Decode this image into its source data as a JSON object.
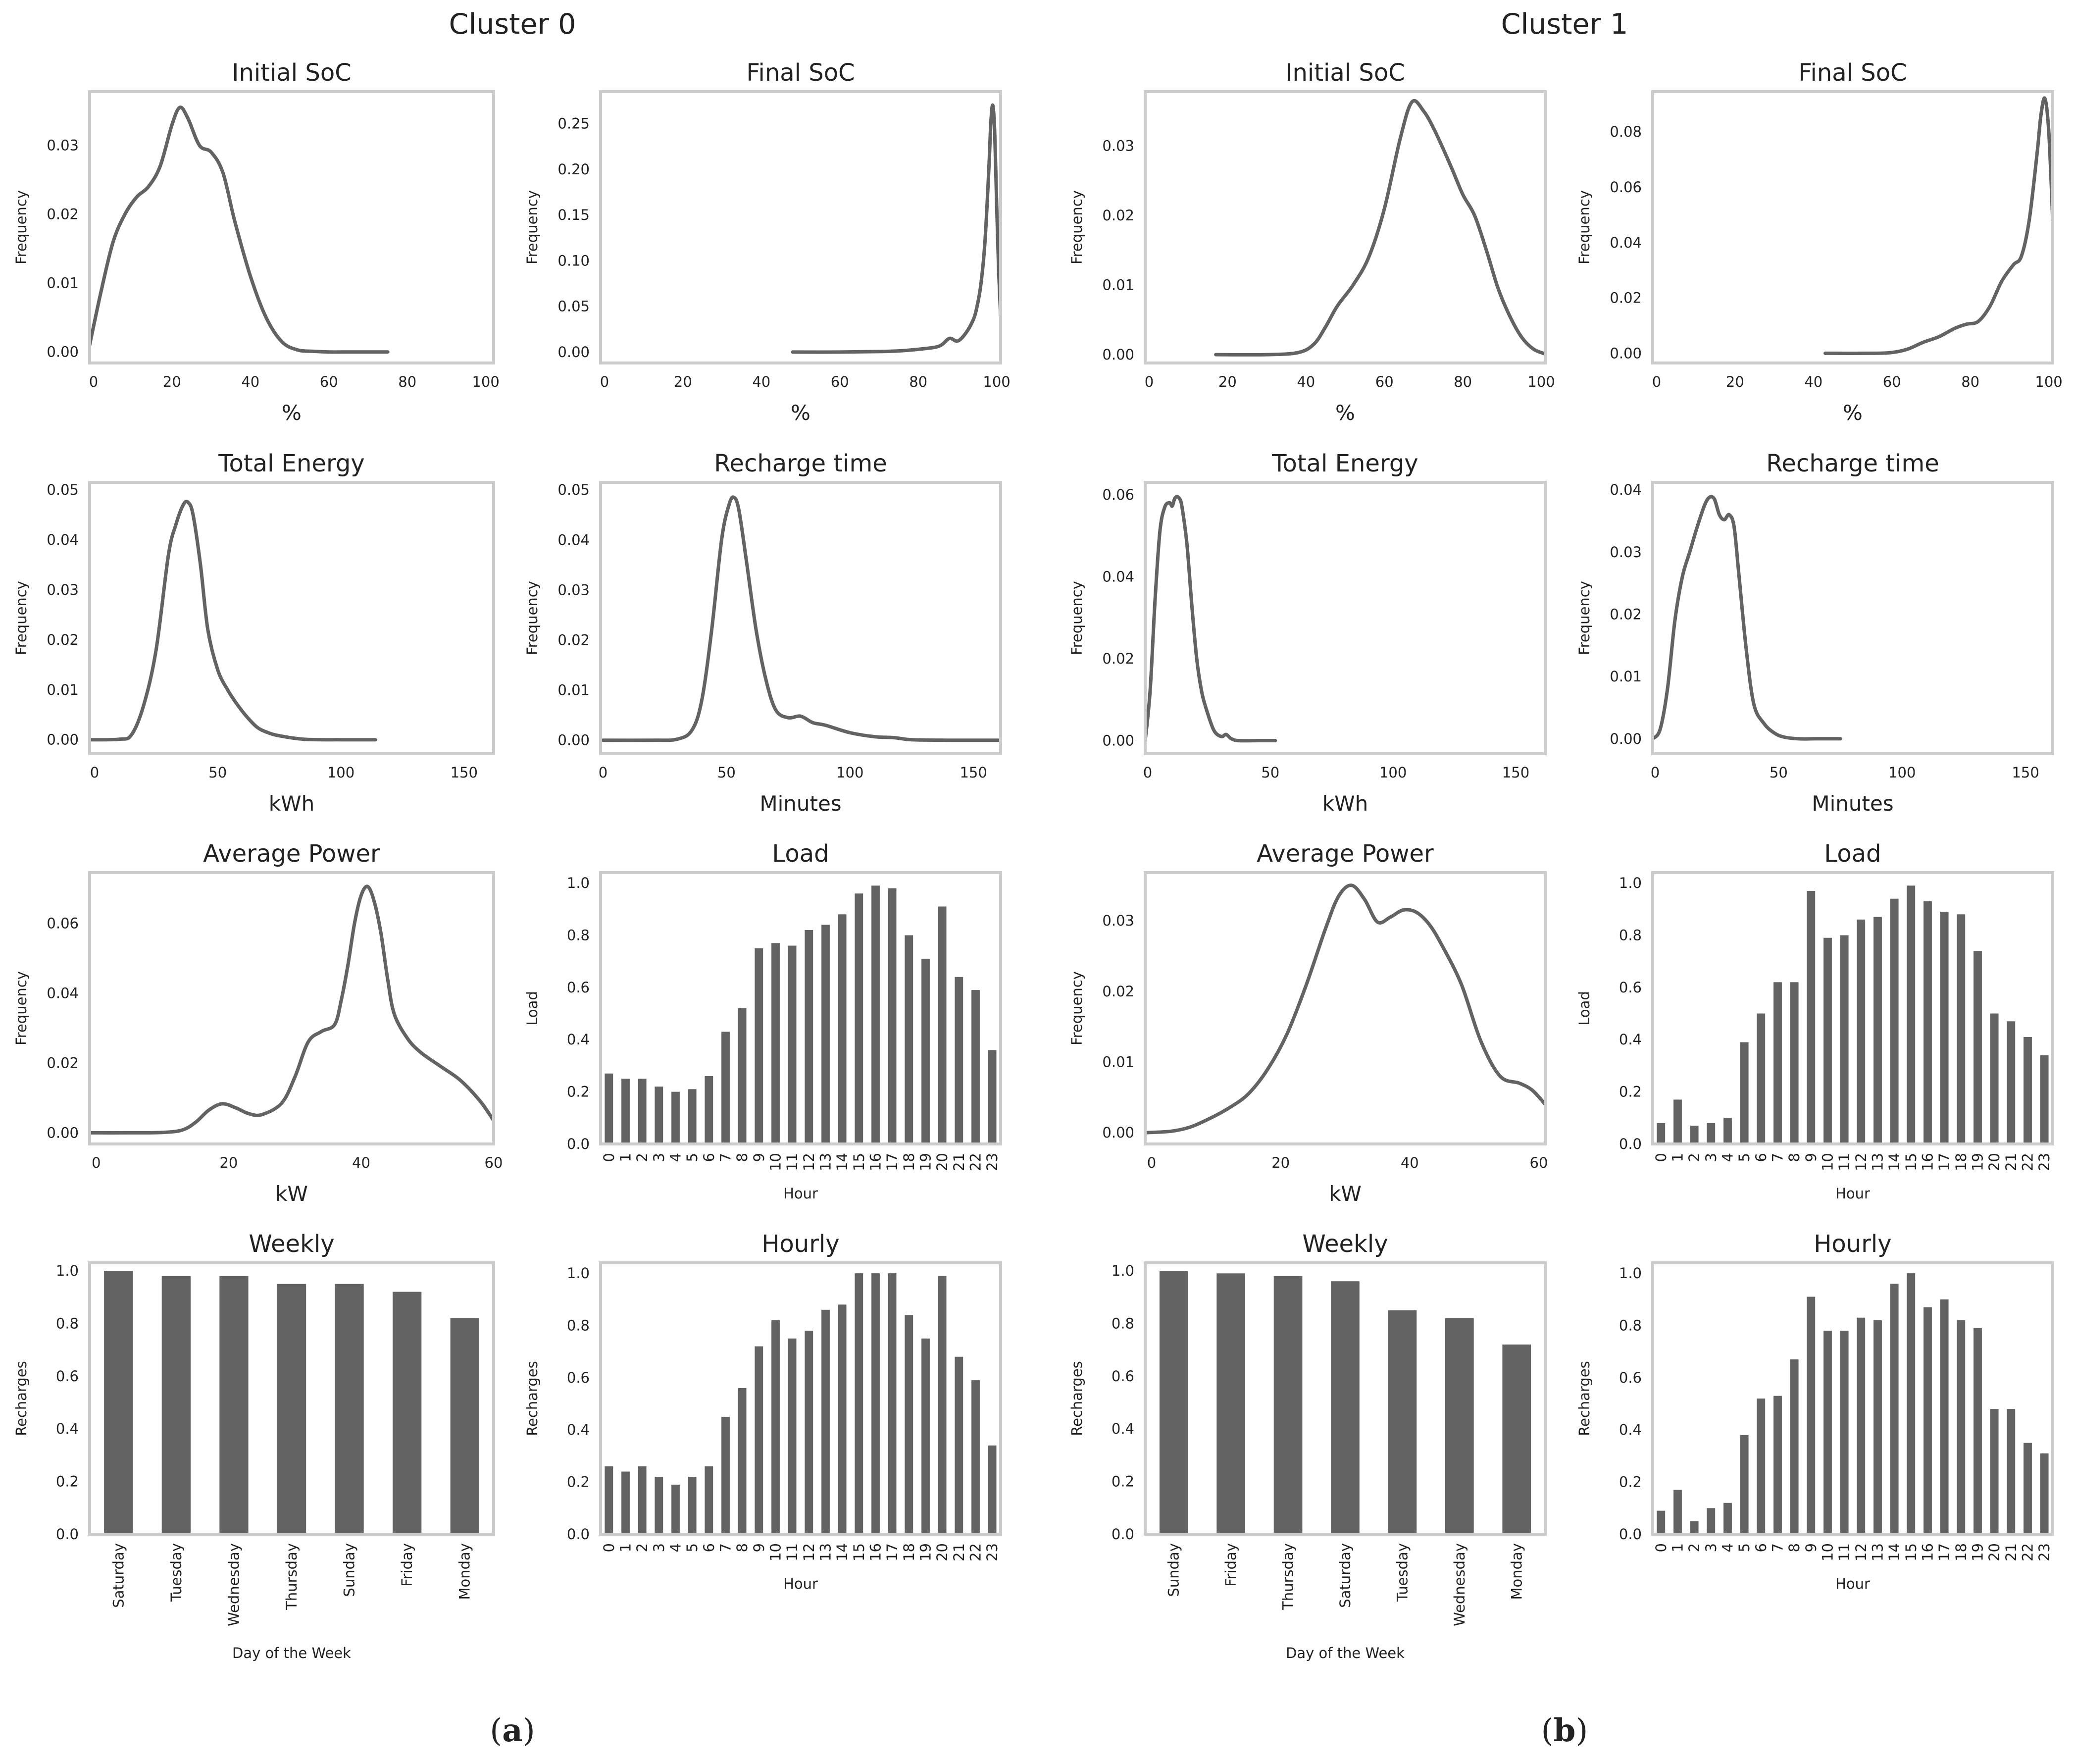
{
  "figure": {
    "cluster_titles": [
      "Cluster 0",
      "Cluster 1"
    ],
    "captions": [
      {
        "open": "(",
        "letter": "a",
        "close": ")"
      },
      {
        "open": "(",
        "letter": "b",
        "close": ")"
      }
    ],
    "colors": {
      "line": "#636363",
      "bar": "#636363",
      "frame": "#cccccc",
      "text": "#222222"
    }
  },
  "chart_data": [
    {
      "id": "c0-initial-soc",
      "cluster": "Cluster 0",
      "type": "line",
      "title": "Initial SoC",
      "xlabel": "%",
      "ylabel": "Frequency",
      "xlim": [
        -1,
        102
      ],
      "ylim": [
        -0.0016,
        0.0378
      ],
      "xticks": [
        0,
        20,
        40,
        60,
        80,
        100
      ],
      "yticks": [
        0.0,
        0.01,
        0.02,
        0.03
      ],
      "xtick_labels": [
        "0",
        "20",
        "40",
        "60",
        "80",
        "100"
      ],
      "ytick_labels": [
        "0.00",
        "0.01",
        "0.02",
        "0.03"
      ],
      "x": [
        -1,
        2,
        5,
        8,
        11,
        14,
        17,
        20,
        22,
        24,
        27,
        30,
        33,
        36,
        40,
        44,
        48,
        52,
        56,
        60,
        66,
        75
      ],
      "y": [
        0.001,
        0.009,
        0.016,
        0.02,
        0.0225,
        0.024,
        0.027,
        0.033,
        0.0355,
        0.034,
        0.03,
        0.029,
        0.026,
        0.019,
        0.011,
        0.005,
        0.0015,
        0.0003,
        0.0001,
        0.0,
        0.0,
        0.0
      ]
    },
    {
      "id": "c0-final-soc",
      "cluster": "Cluster 0",
      "type": "line",
      "title": "Final SoC",
      "xlabel": "%",
      "ylabel": "Frequency",
      "xlim": [
        -1,
        101
      ],
      "ylim": [
        -0.012,
        0.285
      ],
      "xticks": [
        0,
        20,
        40,
        60,
        80,
        100
      ],
      "yticks": [
        0.0,
        0.05,
        0.1,
        0.15,
        0.2,
        0.25
      ],
      "xtick_labels": [
        "0",
        "20",
        "40",
        "60",
        "80",
        "100"
      ],
      "ytick_labels": [
        "0.00",
        "0.05",
        "0.10",
        "0.15",
        "0.20",
        "0.25"
      ],
      "x": [
        48,
        60,
        70,
        76,
        80,
        84,
        86,
        88,
        90,
        92,
        94,
        95,
        96,
        97,
        98,
        98.5,
        99,
        99.5,
        100,
        100.5,
        101
      ],
      "y": [
        0.0,
        0.0,
        0.0005,
        0.0015,
        0.003,
        0.005,
        0.008,
        0.015,
        0.012,
        0.02,
        0.035,
        0.05,
        0.075,
        0.12,
        0.2,
        0.25,
        0.27,
        0.24,
        0.16,
        0.09,
        0.04
      ]
    },
    {
      "id": "c1-initial-soc",
      "cluster": "Cluster 1",
      "type": "line",
      "title": "Initial SoC",
      "xlabel": "%",
      "ylabel": "Frequency",
      "xlim": [
        -1,
        101
      ],
      "ylim": [
        -0.0012,
        0.0378
      ],
      "xticks": [
        0,
        20,
        40,
        60,
        80,
        100
      ],
      "yticks": [
        0.0,
        0.01,
        0.02,
        0.03
      ],
      "xtick_labels": [
        "0",
        "20",
        "40",
        "60",
        "80",
        "100"
      ],
      "ytick_labels": [
        "0.00",
        "0.01",
        "0.02",
        "0.03"
      ],
      "x": [
        17,
        30,
        38,
        42,
        45,
        48,
        52,
        56,
        60,
        64,
        67,
        70,
        73,
        77,
        80,
        83,
        86,
        89,
        92,
        95,
        98,
        101
      ],
      "y": [
        0.0,
        0.0,
        0.0003,
        0.0015,
        0.004,
        0.007,
        0.01,
        0.014,
        0.021,
        0.031,
        0.0363,
        0.035,
        0.032,
        0.027,
        0.023,
        0.02,
        0.015,
        0.0095,
        0.0055,
        0.0025,
        0.0008,
        0.0001
      ]
    },
    {
      "id": "c1-final-soc",
      "cluster": "Cluster 1",
      "type": "line",
      "title": "Final SoC",
      "xlabel": "%",
      "ylabel": "Frequency",
      "xlim": [
        -1,
        101
      ],
      "ylim": [
        -0.0035,
        0.0945
      ],
      "xticks": [
        0,
        20,
        40,
        60,
        80,
        100
      ],
      "yticks": [
        0.0,
        0.02,
        0.04,
        0.06,
        0.08
      ],
      "xtick_labels": [
        "0",
        "20",
        "40",
        "60",
        "80",
        "100"
      ],
      "ytick_labels": [
        "0.00",
        "0.02",
        "0.04",
        "0.06",
        "0.08"
      ],
      "x": [
        43,
        55,
        60,
        64,
        68,
        72,
        76,
        79,
        82,
        85,
        88,
        91,
        93,
        95,
        97,
        98,
        99,
        100,
        101
      ],
      "y": [
        0.0,
        0.0,
        0.0003,
        0.0015,
        0.004,
        0.006,
        0.009,
        0.0105,
        0.0115,
        0.017,
        0.026,
        0.032,
        0.035,
        0.048,
        0.072,
        0.086,
        0.092,
        0.08,
        0.048
      ]
    },
    {
      "id": "c0-total-energy",
      "cluster": "Cluster 0",
      "type": "line",
      "title": "Total Energy",
      "xlabel": "kWh",
      "ylabel": "Frequency",
      "xlim": [
        -2,
        162
      ],
      "ylim": [
        -0.0028,
        0.0515
      ],
      "xticks": [
        0,
        50,
        100,
        150
      ],
      "yticks": [
        0.0,
        0.01,
        0.02,
        0.03,
        0.04,
        0.05
      ],
      "xtick_labels": [
        "0",
        "50",
        "100",
        "150"
      ],
      "ytick_labels": [
        "0.00",
        "0.01",
        "0.02",
        "0.03",
        "0.04",
        "0.05"
      ],
      "x": [
        -2,
        10,
        15,
        20,
        25,
        30,
        33,
        36,
        38,
        40,
        43,
        46,
        50,
        54,
        58,
        62,
        66,
        70,
        75,
        85,
        100,
        114
      ],
      "y": [
        0.0,
        0.0001,
        0.001,
        0.007,
        0.018,
        0.037,
        0.043,
        0.047,
        0.0475,
        0.045,
        0.035,
        0.022,
        0.014,
        0.01,
        0.007,
        0.0045,
        0.0025,
        0.0015,
        0.0008,
        0.0001,
        0.0,
        0.0
      ]
    },
    {
      "id": "c0-recharge-time",
      "cluster": "Cluster 0",
      "type": "line",
      "title": "Recharge time",
      "xlabel": "Minutes",
      "ylabel": "Frequency",
      "xlim": [
        -1,
        161
      ],
      "ylim": [
        -0.0027,
        0.0515
      ],
      "xticks": [
        0,
        50,
        100,
        150
      ],
      "yticks": [
        0.0,
        0.01,
        0.02,
        0.03,
        0.04,
        0.05
      ],
      "xtick_labels": [
        "0",
        "50",
        "100",
        "150"
      ],
      "ytick_labels": [
        "0.00",
        "0.01",
        "0.02",
        "0.03",
        "0.04",
        "0.05"
      ],
      "x": [
        0,
        20,
        30,
        36,
        40,
        44,
        48,
        51,
        53,
        55,
        58,
        62,
        66,
        70,
        75,
        80,
        85,
        90,
        100,
        110,
        118,
        125,
        140,
        161
      ],
      "y": [
        0.0,
        0.0,
        0.0002,
        0.002,
        0.008,
        0.022,
        0.04,
        0.047,
        0.0485,
        0.046,
        0.036,
        0.022,
        0.012,
        0.006,
        0.0045,
        0.0048,
        0.0035,
        0.003,
        0.0015,
        0.0007,
        0.0005,
        0.0001,
        0.0,
        0.0
      ]
    },
    {
      "id": "c1-total-energy",
      "cluster": "Cluster 1",
      "type": "line",
      "title": "Total Energy",
      "xlabel": "kWh",
      "ylabel": "Frequency",
      "xlim": [
        -1,
        162
      ],
      "ylim": [
        -0.0032,
        0.063
      ],
      "xticks": [
        0,
        50,
        100,
        150
      ],
      "yticks": [
        0.0,
        0.02,
        0.04,
        0.06
      ],
      "xtick_labels": [
        "0",
        "50",
        "100",
        "150"
      ],
      "ytick_labels": [
        "0.00",
        "0.02",
        "0.04",
        "0.06"
      ],
      "x": [
        -1,
        1,
        3,
        5,
        7,
        9,
        10,
        11,
        12,
        13,
        14,
        16,
        18,
        20,
        22,
        24,
        27,
        30,
        32,
        34,
        37,
        45,
        52
      ],
      "y": [
        0.0,
        0.012,
        0.034,
        0.051,
        0.057,
        0.058,
        0.0572,
        0.059,
        0.0595,
        0.059,
        0.057,
        0.048,
        0.033,
        0.02,
        0.012,
        0.0075,
        0.0025,
        0.001,
        0.0015,
        0.0005,
        0.0,
        0.0,
        0.0
      ]
    },
    {
      "id": "c1-recharge-time",
      "cluster": "Cluster 1",
      "type": "line",
      "title": "Recharge time",
      "xlabel": "Minutes",
      "ylabel": "Frequency",
      "xlim": [
        -1,
        161
      ],
      "ylim": [
        -0.0024,
        0.0412
      ],
      "xticks": [
        0,
        50,
        100,
        150
      ],
      "yticks": [
        0.0,
        0.01,
        0.02,
        0.03,
        0.04
      ],
      "xtick_labels": [
        "0",
        "50",
        "100",
        "150"
      ],
      "ytick_labels": [
        "0.00",
        "0.01",
        "0.02",
        "0.03",
        "0.04"
      ],
      "x": [
        -1,
        2,
        5,
        8,
        11,
        14,
        17,
        20,
        22,
        24,
        26,
        28,
        30,
        32,
        34,
        37,
        40,
        44,
        48,
        52,
        58,
        65,
        75
      ],
      "y": [
        0.0,
        0.0015,
        0.008,
        0.019,
        0.026,
        0.03,
        0.034,
        0.0375,
        0.0388,
        0.0385,
        0.036,
        0.0352,
        0.036,
        0.034,
        0.026,
        0.014,
        0.0055,
        0.0025,
        0.001,
        0.0003,
        0.0,
        0.0,
        0.0
      ]
    },
    {
      "id": "c0-average-power",
      "cluster": "Cluster 0",
      "type": "line",
      "title": "Average Power",
      "xlabel": "kW",
      "ylabel": "Frequency",
      "xlim": [
        -1,
        60
      ],
      "ylim": [
        -0.0032,
        0.0745
      ],
      "xticks": [
        0,
        20,
        40,
        60
      ],
      "yticks": [
        0.0,
        0.02,
        0.04,
        0.06
      ],
      "xtick_labels": [
        "0",
        "20",
        "40",
        "60"
      ],
      "ytick_labels": [
        "0.00",
        "0.02",
        "0.04",
        "0.06"
      ],
      "x": [
        -1,
        5,
        10,
        13,
        15,
        17,
        19,
        21,
        23,
        25,
        28,
        30,
        32,
        34,
        36,
        37,
        38,
        39,
        40,
        41,
        42,
        43,
        44,
        45,
        47,
        49,
        52,
        55,
        58,
        60
      ],
      "y": [
        0.0,
        0.0,
        0.0001,
        0.0008,
        0.003,
        0.0065,
        0.0083,
        0.0072,
        0.0055,
        0.0052,
        0.0085,
        0.016,
        0.026,
        0.029,
        0.031,
        0.038,
        0.048,
        0.06,
        0.068,
        0.0705,
        0.066,
        0.057,
        0.044,
        0.034,
        0.027,
        0.023,
        0.019,
        0.015,
        0.009,
        0.0035
      ]
    },
    {
      "id": "c0-load",
      "cluster": "Cluster 0",
      "type": "bar",
      "title": "Load",
      "xlabel": "Hour",
      "ylabel": "Load",
      "ylim": [
        0,
        1.04
      ],
      "yticks": [
        0.0,
        0.2,
        0.4,
        0.6,
        0.8,
        1.0
      ],
      "ytick_labels": [
        "0.0",
        "0.2",
        "0.4",
        "0.6",
        "0.8",
        "1.0"
      ],
      "categories": [
        "0",
        "1",
        "2",
        "3",
        "4",
        "5",
        "6",
        "7",
        "8",
        "9",
        "10",
        "11",
        "12",
        "13",
        "14",
        "15",
        "16",
        "17",
        "18",
        "19",
        "20",
        "21",
        "22",
        "23"
      ],
      "values": [
        0.27,
        0.25,
        0.25,
        0.22,
        0.2,
        0.21,
        0.26,
        0.43,
        0.52,
        0.75,
        0.77,
        0.76,
        0.82,
        0.84,
        0.88,
        0.96,
        0.99,
        0.98,
        0.8,
        0.71,
        0.91,
        0.64,
        0.59,
        0.36
      ],
      "rotate_labels": true
    },
    {
      "id": "c1-average-power",
      "cluster": "Cluster 1",
      "type": "line",
      "title": "Average Power",
      "xlabel": "kW",
      "ylabel": "Frequency",
      "xlim": [
        -1,
        61
      ],
      "ylim": [
        -0.0016,
        0.0368
      ],
      "xticks": [
        0,
        20,
        40,
        60
      ],
      "yticks": [
        0.0,
        0.01,
        0.02,
        0.03
      ],
      "xtick_labels": [
        "0",
        "20",
        "40",
        "60"
      ],
      "ytick_labels": [
        "0.00",
        "0.01",
        "0.02",
        "0.03"
      ],
      "x": [
        -1,
        3,
        6,
        9,
        12,
        15,
        18,
        21,
        24,
        27,
        29,
        31,
        33,
        35,
        37,
        39,
        41,
        43,
        45,
        48,
        51,
        54,
        57,
        59,
        61
      ],
      "y": [
        0.0,
        0.0002,
        0.0008,
        0.002,
        0.0035,
        0.0055,
        0.009,
        0.014,
        0.021,
        0.029,
        0.0335,
        0.035,
        0.033,
        0.0298,
        0.0305,
        0.0315,
        0.0312,
        0.0295,
        0.0265,
        0.021,
        0.013,
        0.008,
        0.007,
        0.006,
        0.004
      ]
    },
    {
      "id": "c1-load",
      "cluster": "Cluster 1",
      "type": "bar",
      "title": "Load",
      "xlabel": "Hour",
      "ylabel": "Load",
      "ylim": [
        0,
        1.04
      ],
      "yticks": [
        0.0,
        0.2,
        0.4,
        0.6,
        0.8,
        1.0
      ],
      "ytick_labels": [
        "0.0",
        "0.2",
        "0.4",
        "0.6",
        "0.8",
        "1.0"
      ],
      "categories": [
        "0",
        "1",
        "2",
        "3",
        "4",
        "5",
        "6",
        "7",
        "8",
        "9",
        "10",
        "11",
        "12",
        "13",
        "14",
        "15",
        "16",
        "17",
        "18",
        "19",
        "20",
        "21",
        "22",
        "23"
      ],
      "values": [
        0.08,
        0.17,
        0.07,
        0.08,
        0.1,
        0.39,
        0.5,
        0.62,
        0.62,
        0.97,
        0.79,
        0.8,
        0.86,
        0.87,
        0.94,
        0.99,
        0.93,
        0.89,
        0.88,
        0.74,
        0.5,
        0.47,
        0.41,
        0.34
      ],
      "rotate_labels": true
    },
    {
      "id": "c0-weekly",
      "cluster": "Cluster 0",
      "type": "bar",
      "title": "Weekly",
      "xlabel": "Day of the Week",
      "ylabel": "Recharges",
      "ylim": [
        0,
        1.03
      ],
      "yticks": [
        0.0,
        0.2,
        0.4,
        0.6,
        0.8,
        1.0
      ],
      "ytick_labels": [
        "0.0",
        "0.2",
        "0.4",
        "0.6",
        "0.8",
        "1.0"
      ],
      "categories": [
        "Saturday",
        "Tuesday",
        "Wednesday",
        "Thursday",
        "Sunday",
        "Friday",
        "Monday"
      ],
      "values": [
        1.0,
        0.98,
        0.98,
        0.95,
        0.95,
        0.92,
        0.82
      ],
      "rotate_labels": true
    },
    {
      "id": "c0-hourly",
      "cluster": "Cluster 0",
      "type": "bar",
      "title": "Hourly",
      "xlabel": "Hour",
      "ylabel": "Recharges",
      "ylim": [
        0,
        1.04
      ],
      "yticks": [
        0.0,
        0.2,
        0.4,
        0.6,
        0.8,
        1.0
      ],
      "ytick_labels": [
        "0.0",
        "0.2",
        "0.4",
        "0.6",
        "0.8",
        "1.0"
      ],
      "categories": [
        "0",
        "1",
        "2",
        "3",
        "4",
        "5",
        "6",
        "7",
        "8",
        "9",
        "10",
        "11",
        "12",
        "13",
        "14",
        "15",
        "16",
        "17",
        "18",
        "19",
        "20",
        "21",
        "22",
        "23"
      ],
      "values": [
        0.26,
        0.24,
        0.26,
        0.22,
        0.19,
        0.22,
        0.26,
        0.45,
        0.56,
        0.72,
        0.82,
        0.75,
        0.78,
        0.86,
        0.88,
        1.0,
        1.0,
        1.0,
        0.84,
        0.75,
        0.99,
        0.68,
        0.59,
        0.34
      ],
      "rotate_labels": true
    },
    {
      "id": "c1-weekly",
      "cluster": "Cluster 1",
      "type": "bar",
      "title": "Weekly",
      "xlabel": "Day of the Week",
      "ylabel": "Recharges",
      "ylim": [
        0,
        1.03
      ],
      "yticks": [
        0.0,
        0.2,
        0.4,
        0.6,
        0.8,
        1.0
      ],
      "ytick_labels": [
        "0.0",
        "0.2",
        "0.4",
        "0.6",
        "0.8",
        "1.0"
      ],
      "categories": [
        "Sunday",
        "Friday",
        "Thursday",
        "Saturday",
        "Tuesday",
        "Wednesday",
        "Monday"
      ],
      "values": [
        1.0,
        0.99,
        0.98,
        0.96,
        0.85,
        0.82,
        0.72
      ],
      "rotate_labels": true
    },
    {
      "id": "c1-hourly",
      "cluster": "Cluster 1",
      "type": "bar",
      "title": "Hourly",
      "xlabel": "Hour",
      "ylabel": "Recharges",
      "ylim": [
        0,
        1.04
      ],
      "yticks": [
        0.0,
        0.2,
        0.4,
        0.6,
        0.8,
        1.0
      ],
      "ytick_labels": [
        "0.0",
        "0.2",
        "0.4",
        "0.6",
        "0.8",
        "1.0"
      ],
      "categories": [
        "0",
        "1",
        "2",
        "3",
        "4",
        "5",
        "6",
        "7",
        "8",
        "9",
        "10",
        "11",
        "12",
        "13",
        "14",
        "15",
        "16",
        "17",
        "18",
        "19",
        "20",
        "21",
        "22",
        "23"
      ],
      "values": [
        0.09,
        0.17,
        0.05,
        0.1,
        0.12,
        0.38,
        0.52,
        0.53,
        0.67,
        0.91,
        0.78,
        0.78,
        0.83,
        0.82,
        0.96,
        1.0,
        0.87,
        0.9,
        0.82,
        0.79,
        0.48,
        0.48,
        0.35,
        0.31
      ],
      "rotate_labels": true
    }
  ]
}
